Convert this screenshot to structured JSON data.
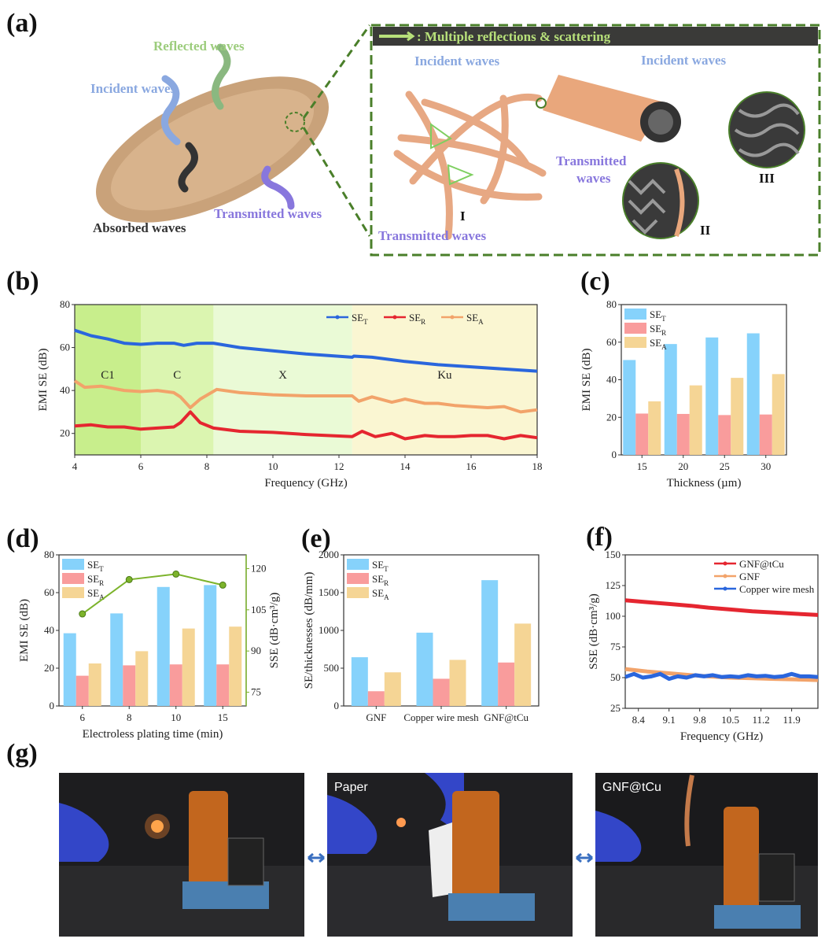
{
  "panel_labels": [
    "(a)",
    "(b)",
    "(c)",
    "(d)",
    "(e)",
    "(f)",
    "(g)"
  ],
  "illustration": {
    "left": {
      "reflected": "Reflected waves",
      "incident": "Incident waves",
      "absorbed": "Absorbed waves",
      "transmitted": "Transmitted waves"
    },
    "inset": {
      "header": ": Multiple reflections & scattering",
      "incident_1": "Incident waves",
      "incident_2": "Incident waves",
      "transmitted_1a": "Transmitted",
      "transmitted_1b": "waves",
      "transmitted_2": "Transmitted waves",
      "label_I": "I",
      "label_II": "II",
      "label_III": "III"
    }
  },
  "photos": {
    "captions": [
      "",
      "Paper",
      "GNF@tCu"
    ]
  },
  "colors": {
    "bar_T": "#86d2fb",
    "bar_R": "#f99c9c",
    "bar_A": "#f5d595",
    "line_T": "#2a66dd",
    "line_R": "#e52630",
    "line_A": "#f2a36a",
    "sse": "#7cb32b"
  },
  "chart_data": [
    {
      "panel": "b",
      "type": "line",
      "xlabel": "Frequency (GHz)",
      "ylabel": "EMI SE (dB)",
      "xlim": [
        4,
        18
      ],
      "ylim": [
        10,
        80
      ],
      "xticks": [
        4,
        6,
        8,
        10,
        12,
        14,
        16,
        18
      ],
      "yticks": [
        20,
        40,
        60,
        80
      ],
      "bands": [
        {
          "label": "C1",
          "range": [
            4,
            6
          ],
          "color": "#c8ee8c"
        },
        {
          "label": "C",
          "range": [
            6,
            8.2
          ],
          "color": "#dbf5b0"
        },
        {
          "label": "X",
          "range": [
            8.2,
            12.4
          ],
          "color": "#eafad6"
        },
        {
          "label": "Ku",
          "range": [
            12.4,
            18
          ],
          "color": "#faf6d2"
        }
      ],
      "legend_position": "top-right",
      "series": [
        {
          "name": "SE",
          "sub": "T",
          "color": "#2a66dd",
          "x": [
            4,
            4.5,
            5,
            5.5,
            6,
            6.5,
            7,
            7.3,
            7.7,
            8.2,
            9,
            10,
            11,
            12.4,
            12.45,
            13,
            14,
            15,
            16,
            17,
            18
          ],
          "y": [
            68,
            65.5,
            64,
            62,
            61.5,
            62,
            62,
            61,
            62,
            62,
            60,
            58.5,
            57,
            55.5,
            56,
            55.5,
            53.5,
            52,
            51,
            50,
            49
          ]
        },
        {
          "name": "SE",
          "sub": "R",
          "color": "#e52630",
          "x": [
            4,
            4.5,
            5,
            5.5,
            6,
            6.5,
            7,
            7.2,
            7.5,
            7.8,
            8.2,
            9,
            10,
            11,
            12.4,
            12.7,
            13.1,
            13.6,
            14,
            14.6,
            15,
            15.5,
            16,
            16.5,
            17,
            17.5,
            18
          ],
          "y": [
            23.5,
            24,
            23,
            23,
            22,
            22.5,
            23,
            25,
            30,
            25,
            22.5,
            21,
            20.5,
            19.5,
            18.5,
            21,
            18.5,
            20,
            17.5,
            19,
            18.5,
            18.5,
            19,
            19,
            17.5,
            19,
            18
          ]
        },
        {
          "name": "SE",
          "sub": "A",
          "color": "#f2a36a",
          "x": [
            4,
            4.3,
            4.8,
            5.5,
            6,
            6.5,
            7,
            7.2,
            7.5,
            7.8,
            8.3,
            9,
            10,
            11,
            12.4,
            12.6,
            13,
            13.6,
            14,
            14.6,
            15,
            15.5,
            16,
            16.5,
            17,
            17.5,
            18
          ],
          "y": [
            44.5,
            41.5,
            42,
            40,
            39.5,
            40,
            39,
            37,
            32,
            36,
            40.5,
            39,
            38,
            37.5,
            37.5,
            35,
            37,
            34.5,
            36,
            34,
            34,
            33,
            32.5,
            32,
            32.5,
            30,
            31
          ]
        }
      ]
    },
    {
      "panel": "c",
      "type": "bar",
      "xlabel": "Thickness (µm)",
      "ylabel": "EMI SE (dB)",
      "categories": [
        "15",
        "20",
        "25",
        "30"
      ],
      "ylim": [
        0,
        80
      ],
      "yticks": [
        0,
        20,
        40,
        60,
        80
      ],
      "legend_position": "top-left",
      "series": [
        {
          "name": "SE",
          "sub": "T",
          "values": [
            50.5,
            59,
            62.5,
            64.7
          ]
        },
        {
          "name": "SE",
          "sub": "R",
          "values": [
            22,
            21.8,
            21.2,
            21.5
          ]
        },
        {
          "name": "SE",
          "sub": "A",
          "values": [
            28.5,
            37,
            41,
            43
          ]
        }
      ]
    },
    {
      "panel": "d",
      "type": "bar",
      "xlabel": "Electroless plating time (min)",
      "ylabel": "EMI SE (dB)",
      "y2label": "SSE (dB·cm³/g)",
      "categories": [
        "6",
        "8",
        "10",
        "15"
      ],
      "ylim": [
        0,
        80
      ],
      "yticks": [
        0,
        20,
        40,
        60,
        80
      ],
      "y2lim": [
        70,
        125
      ],
      "y2ticks": [
        75,
        90,
        105,
        120
      ],
      "legend_position": "top-left",
      "series": [
        {
          "name": "SE",
          "sub": "T",
          "values": [
            38.5,
            49,
            63,
            64
          ]
        },
        {
          "name": "SE",
          "sub": "R",
          "values": [
            16,
            21.5,
            22,
            22
          ]
        },
        {
          "name": "SE",
          "sub": "A",
          "values": [
            22.5,
            29,
            41,
            42
          ]
        }
      ],
      "line_series": {
        "name": "SSE",
        "values": [
          103.5,
          116,
          118,
          114
        ]
      }
    },
    {
      "panel": "e",
      "type": "bar",
      "xlabel": "",
      "ylabel": "SE/thicknesses (dB/mm)",
      "categories": [
        "GNF",
        "Copper wire mesh",
        "GNF@tCu"
      ],
      "ylim": [
        0,
        2000
      ],
      "yticks": [
        0,
        500,
        1000,
        1500,
        2000
      ],
      "legend_position": "top-left",
      "series": [
        {
          "name": "SE",
          "sub": "T",
          "values": [
            645,
            970,
            1665
          ]
        },
        {
          "name": "SE",
          "sub": "R",
          "values": [
            195,
            360,
            575
          ]
        },
        {
          "name": "SE",
          "sub": "A",
          "values": [
            445,
            610,
            1090
          ]
        }
      ]
    },
    {
      "panel": "f",
      "type": "line",
      "xlabel": "Frequency (GHz)",
      "ylabel": "SSE (dB·cm³/g)",
      "xlim": [
        8.1,
        12.5
      ],
      "ylim": [
        25,
        150
      ],
      "xticks": [
        8.4,
        9.1,
        9.8,
        10.5,
        11.2,
        11.9
      ],
      "yticks": [
        25,
        50,
        75,
        100,
        125,
        150
      ],
      "legend_position": "top-right",
      "series": [
        {
          "name": "GNF@tCu",
          "color": "#e52630",
          "x": [
            8.1,
            8.6,
            9.1,
            9.6,
            10,
            10.5,
            11,
            11.5,
            12,
            12.5
          ],
          "y": [
            113,
            111.5,
            110,
            108.5,
            107,
            105.5,
            104,
            103,
            102,
            101
          ]
        },
        {
          "name": "GNF",
          "color": "#f2a36a",
          "x": [
            8.1,
            8.6,
            9.1,
            9.6,
            10,
            10.5,
            11,
            11.5,
            12,
            12.5
          ],
          "y": [
            57,
            55,
            53.5,
            52,
            51,
            50,
            49.5,
            49,
            48.5,
            48
          ]
        },
        {
          "name": "Copper wire mesh",
          "color": "#2a66dd",
          "x": [
            8.1,
            8.3,
            8.5,
            8.7,
            8.9,
            9.1,
            9.3,
            9.5,
            9.7,
            9.9,
            10.1,
            10.3,
            10.5,
            10.7,
            10.9,
            11.1,
            11.3,
            11.5,
            11.7,
            11.9,
            12.1,
            12.3,
            12.5
          ],
          "y": [
            50.5,
            53,
            50,
            51,
            53,
            49,
            51,
            50,
            52,
            51,
            52,
            50.5,
            51,
            50.5,
            52,
            51,
            51.5,
            50.5,
            51,
            53,
            51,
            51,
            50.5
          ]
        }
      ]
    }
  ]
}
